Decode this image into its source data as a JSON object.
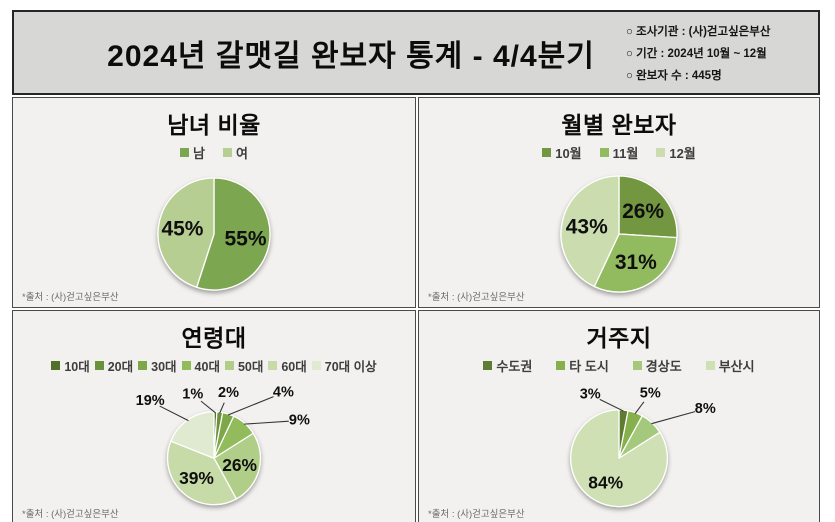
{
  "header": {
    "title": "2024년 갈맷길 완보자 통계 - 4/4분기",
    "info_items": [
      "○ 조사기관 : (사)걷고싶은부산",
      "○ 기간 : 2024년 10월 ~ 12월",
      "○ 완보자 수 : 445명"
    ]
  },
  "source_note": "*출처 : (사)걷고싶은부산",
  "chart_data": [
    {
      "type": "pie",
      "title": "남녀 비율",
      "categories": [
        "남",
        "여"
      ],
      "values": [
        55,
        45
      ],
      "labels": [
        "55%",
        "45%"
      ],
      "colors": [
        "#7CA64F",
        "#B6CE92"
      ],
      "legend_position": "top",
      "start_angle_deg": 0,
      "label_offsets": {}
    },
    {
      "type": "pie",
      "title": "월별 완보자",
      "categories": [
        "10월",
        "11월",
        "12월"
      ],
      "values": [
        26,
        31,
        43
      ],
      "labels": [
        "26%",
        "31%",
        "43%"
      ],
      "colors": [
        "#72973F",
        "#92BB61",
        "#CBDCAE"
      ],
      "legend_position": "top",
      "start_angle_deg": 0,
      "label_offsets": {}
    },
    {
      "type": "pie",
      "title": "연령대",
      "categories": [
        "10대",
        "20대",
        "30대",
        "40대",
        "50대",
        "60대",
        "70대 이상"
      ],
      "values": [
        1,
        2,
        4,
        9,
        26,
        39,
        19
      ],
      "labels": [
        "1%",
        "2%",
        "4%",
        "9%",
        "26%",
        "39%",
        "19%"
      ],
      "colors": [
        "#51702B",
        "#69923B",
        "#7EA748",
        "#92BB5B",
        "#B1CE89",
        "#C7DBA8",
        "#DFEAD1"
      ],
      "legend_position": "top",
      "start_angle_deg": 0,
      "label_offsets": {
        "0": [
          -24,
          -2
        ],
        "1": [
          7,
          -4
        ],
        "2": [
          52,
          -7
        ],
        "3": [
          46,
          9
        ],
        "6": [
          -30,
          -6
        ]
      }
    },
    {
      "type": "pie",
      "title": "거주지",
      "categories": [
        "수도권",
        "타 도시",
        "경상도",
        "부산시"
      ],
      "values": [
        3,
        5,
        8,
        84
      ],
      "labels": [
        "3%",
        "5%",
        "8%",
        "84%"
      ],
      "colors": [
        "#5E7C33",
        "#85B04C",
        "#A4C97B",
        "#CFE0B5"
      ],
      "legend_position": "top",
      "start_angle_deg": 0,
      "label_offsets": {
        "0": [
          -36,
          0
        ],
        "1": [
          10,
          -5
        ],
        "2": [
          44,
          -3
        ]
      }
    }
  ]
}
